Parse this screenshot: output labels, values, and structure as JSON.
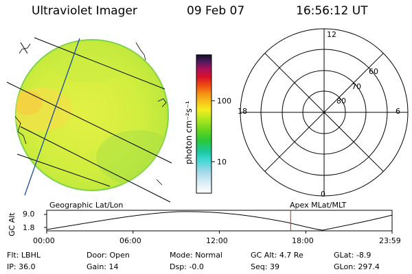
{
  "header": {
    "instrument": "Ultraviolet Imager",
    "date": "09 Feb 07",
    "time": "16:56:12 UT"
  },
  "colorbar": {
    "unit_label": "photon cm⁻²s⁻¹",
    "ticks": [
      "100",
      "10"
    ]
  },
  "polar": {
    "mlt_labels": [
      "12",
      "18",
      "6",
      "0"
    ],
    "lat_labels": [
      "60",
      "70",
      "80"
    ]
  },
  "orbit": {
    "left_label": "Geographic Lat/Lon",
    "right_label": "Apex MLat/MLT",
    "axis_label": "GC Alt",
    "y_ticks": [
      "9.0",
      "1.8"
    ],
    "x_ticks": [
      "00:00",
      "06:00",
      "12:00",
      "18:00",
      "23:59"
    ],
    "marker_hours": 16.94
  },
  "info": {
    "row1": [
      {
        "label": "Flt:",
        "value": "LBHL"
      },
      {
        "label": "Door:",
        "value": "Open"
      },
      {
        "label": "Mode:",
        "value": "Normal"
      },
      {
        "label": "GC Alt:",
        "value": "4.7 Re"
      },
      {
        "label": "GLat:",
        "value": "-8.9"
      }
    ],
    "row2": [
      {
        "label": "IP:",
        "value": "36.0"
      },
      {
        "label": "Gain:",
        "value": "14"
      },
      {
        "label": "Dsp:",
        "value": "-0.0"
      },
      {
        "label": "Seq:",
        "value": "39"
      },
      {
        "label": "GLon:",
        "value": "297.4"
      }
    ]
  },
  "colors": {
    "marker": "#cc2222",
    "disk_fill": "#d2ee3e",
    "disk_edge": "#7fd34a"
  }
}
